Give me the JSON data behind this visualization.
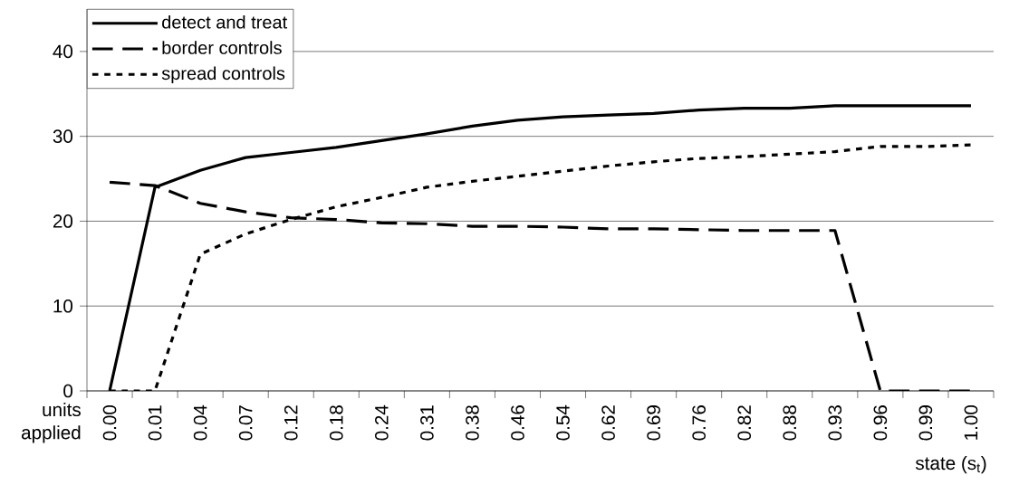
{
  "chart_data": {
    "type": "line",
    "xlabel": "state (s$_{t}$)",
    "ylabel": "units applied",
    "categories": [
      "0.00",
      "0.01",
      "0.04",
      "0.07",
      "0.12",
      "0.18",
      "0.24",
      "0.31",
      "0.38",
      "0.46",
      "0.54",
      "0.62",
      "0.69",
      "0.76",
      "0.82",
      "0.88",
      "0.93",
      "0.96",
      "0.99",
      "1.00"
    ],
    "series": [
      {
        "name": "detect and treat",
        "color": "#000000",
        "line_style": "solid",
        "values": [
          0,
          24,
          26,
          27.5,
          28.1,
          28.7,
          29.5,
          30.3,
          31.2,
          31.9,
          32.3,
          32.5,
          32.7,
          33.1,
          33.3,
          33.3,
          33.6,
          33.6,
          33.6,
          33.6
        ]
      },
      {
        "name": "border controls",
        "color": "#000000",
        "line_style": "dashed",
        "values": [
          24.6,
          24.2,
          22.1,
          21.1,
          20.4,
          20.2,
          19.8,
          19.7,
          19.4,
          19.4,
          19.3,
          19.1,
          19.1,
          19.0,
          18.9,
          18.9,
          18.9,
          0,
          0,
          0
        ]
      },
      {
        "name": "spread controls",
        "color": "#000000",
        "line_style": "dotted",
        "values": [
          0,
          0,
          16.1,
          18.5,
          20.2,
          21.7,
          22.8,
          24.0,
          24.7,
          25.3,
          25.9,
          26.5,
          27.0,
          27.4,
          27.6,
          27.9,
          28.2,
          28.8,
          28.8,
          29.0
        ]
      }
    ],
    "ylim": [
      0,
      45
    ],
    "yticks": [
      0,
      10,
      20,
      30,
      40
    ],
    "grid": "y",
    "legend": "top left"
  }
}
